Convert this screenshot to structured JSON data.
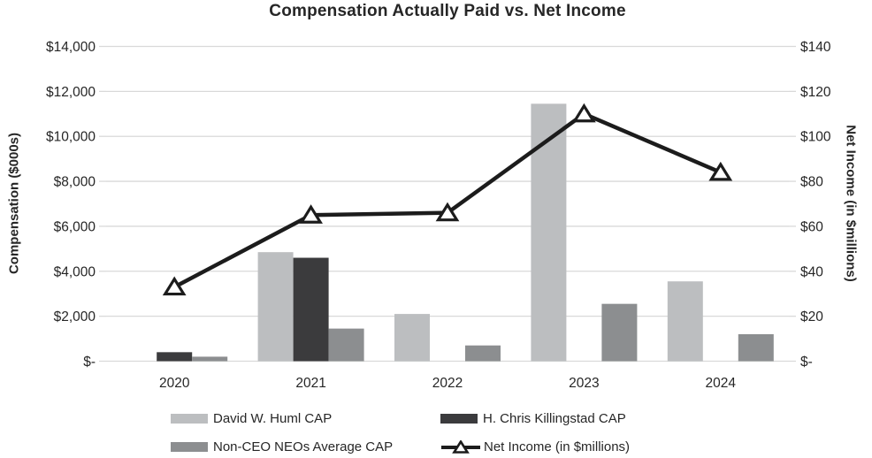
{
  "chart_data": {
    "type": "combo-bar-line",
    "title": "Compensation Actually Paid vs. Net Income",
    "categories": [
      "2020",
      "2021",
      "2022",
      "2023",
      "2024"
    ],
    "series": [
      {
        "name": "David W. Huml CAP",
        "type": "bar",
        "axis": "left",
        "color": "#bcbec0",
        "values": [
          null,
          4850,
          2100,
          11450,
          3550
        ]
      },
      {
        "name": "H. Chris Killingstad CAP",
        "type": "bar",
        "axis": "left",
        "color": "#3b3b3d",
        "values": [
          400,
          4600,
          null,
          null,
          null
        ]
      },
      {
        "name": "Non-CEO NEOs Average CAP",
        "type": "bar",
        "axis": "left",
        "color": "#8c8e90",
        "values": [
          200,
          1450,
          700,
          2550,
          1200
        ]
      },
      {
        "name": "Net Income (in $millions)",
        "type": "line",
        "axis": "right",
        "color": "#1c1c1c",
        "marker": "triangle-up",
        "marker_fill": "#ffffff",
        "values": [
          33,
          65,
          66,
          110,
          84
        ]
      }
    ],
    "left_axis": {
      "label": "Compensation ($000s)",
      "ticks": [
        "$-",
        "$2,000",
        "$4,000",
        "$6,000",
        "$8,000",
        "$10,000",
        "$12,000",
        "$14,000"
      ],
      "min": 0,
      "max": 14000,
      "step": 2000
    },
    "right_axis": {
      "label": "Net Income (in $millions)",
      "ticks": [
        "$-",
        "$20",
        "$40",
        "$60",
        "$80",
        "$100",
        "$120",
        "$140"
      ],
      "min": 0,
      "max": 140,
      "step": 20
    },
    "grid": "horizontal",
    "legend_position": "bottom"
  },
  "colors": {
    "grid": "#d9d9d9",
    "text": "#262626",
    "background": "#ffffff"
  }
}
